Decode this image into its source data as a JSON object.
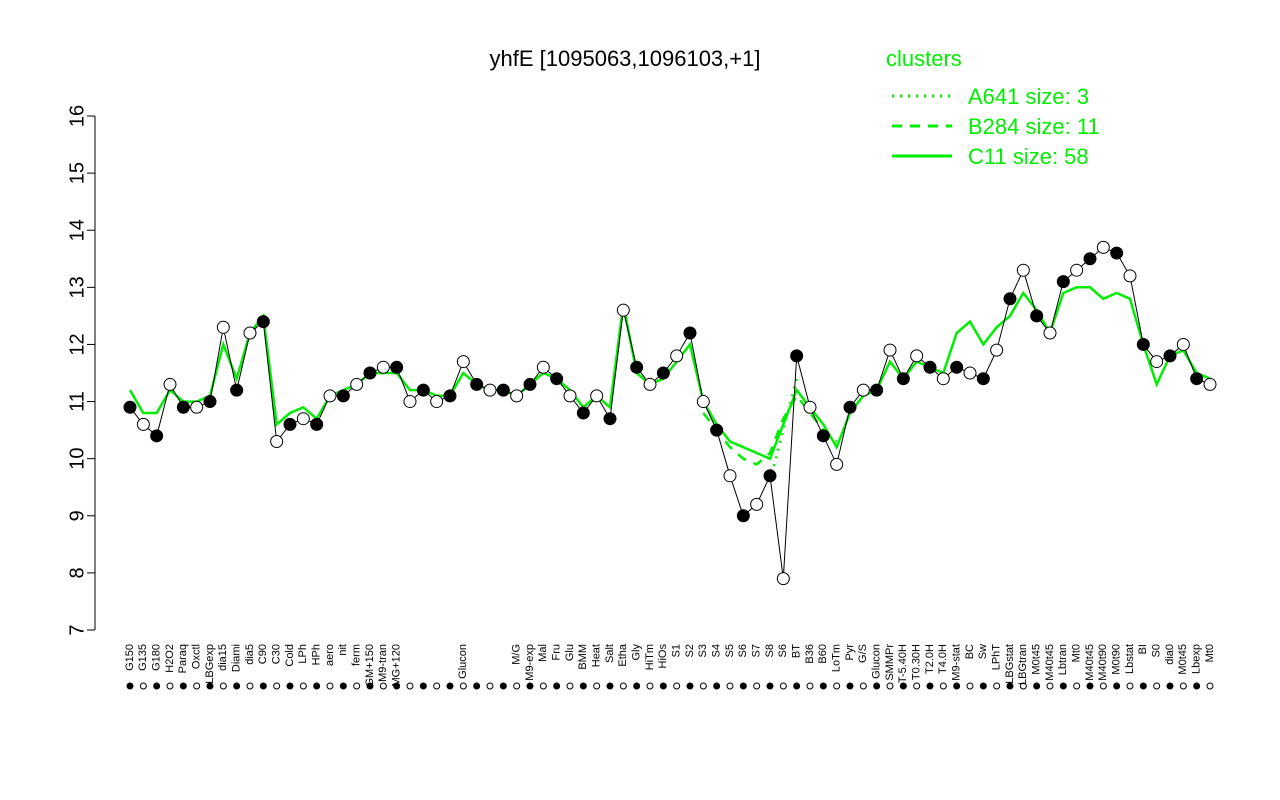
{
  "chart_data": {
    "type": "line",
    "title": "yhfE [1095063,1096103,+1]",
    "legend_title": "clusters",
    "legend_position": "top-right",
    "ylim": [
      7,
      16
    ],
    "yticks": [
      7,
      8,
      9,
      10,
      11,
      12,
      13,
      14,
      15,
      16
    ],
    "marker_fills": [
      "#000000",
      "#ffffff"
    ],
    "categories": [
      "G150",
      "G135",
      "G180",
      "H2O2",
      "Paraq",
      "Oxctl",
      "LBGexp",
      "dia15",
      "Diami",
      "dia5",
      "C90",
      "C30",
      "Cold",
      "LPh",
      "HPh",
      "aero",
      "nit",
      "ferm",
      "GM+150",
      "M9-tran",
      "MG+120",
      null,
      null,
      null,
      null,
      "Glucon",
      null,
      null,
      null,
      "M/G",
      "M9-exp",
      "Mal",
      "Fru",
      "Glu",
      "BMM",
      "Heat",
      "Salt",
      "Etha",
      "Gly",
      "HiTm",
      "HiOs",
      "S1",
      "S2",
      "S3",
      "S4",
      "S5",
      "S6",
      "S7",
      "S8",
      "S6",
      "BT",
      "B36",
      "B60",
      "LoTm",
      "Pyr",
      "G/S",
      "Glucon",
      "SMMPr",
      "T-5.40H",
      "T0.30H",
      "T2.0H",
      "T4.0H",
      "M9-stat",
      "BC",
      "Sw",
      "LPhT",
      "LBGstat",
      "LBGtran",
      "M0t45",
      "M40t45",
      "Lbtran",
      "Mt0",
      "M40t45",
      "M40t90",
      "M0t90",
      "Lbstat",
      "BI",
      "S0",
      "dia0",
      "M0t45",
      "Lbexp",
      "Mt0"
    ],
    "values": [
      10.9,
      10.6,
      10.4,
      11.3,
      10.9,
      10.9,
      11.0,
      12.3,
      11.2,
      12.2,
      12.4,
      10.3,
      10.6,
      10.7,
      10.6,
      11.1,
      11.1,
      11.3,
      11.5,
      11.6,
      11.6,
      11.0,
      11.2,
      11.0,
      11.1,
      11.7,
      11.3,
      11.2,
      11.2,
      11.1,
      11.3,
      11.6,
      11.4,
      11.1,
      10.8,
      11.1,
      10.7,
      12.6,
      11.6,
      11.3,
      11.5,
      11.8,
      12.2,
      11.0,
      10.5,
      9.7,
      9.0,
      9.2,
      9.7,
      7.9,
      11.8,
      10.9,
      10.4,
      9.9,
      10.9,
      11.2,
      11.2,
      11.9,
      11.4,
      11.8,
      11.6,
      11.4,
      11.6,
      11.5,
      11.4,
      11.9,
      12.8,
      13.3,
      12.5,
      12.2,
      13.1,
      13.3,
      13.5,
      13.7,
      13.6,
      13.2,
      12.0,
      11.7,
      11.8,
      12.0,
      11.4,
      11.3
    ],
    "series": [
      {
        "name": "A641 size: 3",
        "color": "#00ee00",
        "dash": "dotted",
        "values": [
          null,
          null,
          null,
          null,
          null,
          null,
          null,
          null,
          null,
          null,
          null,
          null,
          null,
          null,
          null,
          null,
          null,
          null,
          null,
          null,
          null,
          null,
          null,
          null,
          null,
          null,
          null,
          null,
          null,
          null,
          null,
          null,
          null,
          null,
          null,
          null,
          null,
          null,
          null,
          null,
          null,
          null,
          null,
          null,
          null,
          null,
          null,
          null,
          9.6,
          10.5,
          11.4,
          null,
          null,
          null,
          null,
          null,
          null,
          null,
          null,
          null,
          null,
          null,
          null,
          null,
          null,
          null,
          null,
          null,
          null,
          null,
          null,
          null,
          null,
          null,
          null,
          null,
          null,
          null,
          null,
          null,
          null,
          null
        ]
      },
      {
        "name": "B284 size: 11",
        "color": "#00ee00",
        "dash": "dashed",
        "values": [
          null,
          null,
          null,
          null,
          null,
          null,
          null,
          null,
          null,
          null,
          null,
          null,
          null,
          null,
          null,
          null,
          null,
          null,
          null,
          null,
          null,
          null,
          null,
          null,
          null,
          null,
          null,
          null,
          null,
          null,
          null,
          null,
          null,
          null,
          null,
          null,
          null,
          null,
          null,
          null,
          null,
          null,
          null,
          10.8,
          10.5,
          10.2,
          10.0,
          9.9,
          10.1,
          10.7,
          11.1,
          10.8,
          10.5,
          10.3,
          null,
          null,
          null,
          null,
          null,
          null,
          null,
          null,
          null,
          null,
          null,
          null,
          null,
          null,
          null,
          null,
          null,
          null,
          null,
          null,
          null,
          null,
          null,
          null,
          null,
          null,
          null,
          null
        ]
      },
      {
        "name": "C11 size: 58",
        "color": "#00ee00",
        "dash": "solid",
        "values": [
          11.2,
          10.8,
          10.8,
          11.2,
          11.0,
          11.0,
          11.1,
          12.0,
          11.4,
          12.2,
          12.5,
          10.6,
          10.8,
          10.9,
          10.7,
          11.1,
          11.2,
          11.3,
          11.5,
          11.5,
          11.5,
          11.2,
          11.2,
          11.1,
          11.1,
          11.5,
          11.3,
          11.2,
          11.2,
          11.1,
          11.3,
          11.5,
          11.4,
          11.2,
          10.9,
          11.1,
          10.9,
          12.7,
          11.5,
          11.3,
          11.4,
          11.7,
          12.0,
          11.0,
          10.6,
          10.3,
          10.2,
          10.1,
          10.0,
          10.6,
          11.2,
          10.9,
          10.6,
          10.2,
          10.8,
          11.1,
          11.2,
          11.7,
          11.4,
          11.7,
          11.6,
          11.5,
          12.2,
          12.4,
          12.0,
          12.3,
          12.5,
          12.9,
          12.6,
          12.2,
          12.9,
          13.0,
          13.0,
          12.8,
          12.9,
          12.8,
          12.0,
          11.3,
          11.8,
          11.9,
          11.5,
          11.4
        ]
      }
    ]
  }
}
